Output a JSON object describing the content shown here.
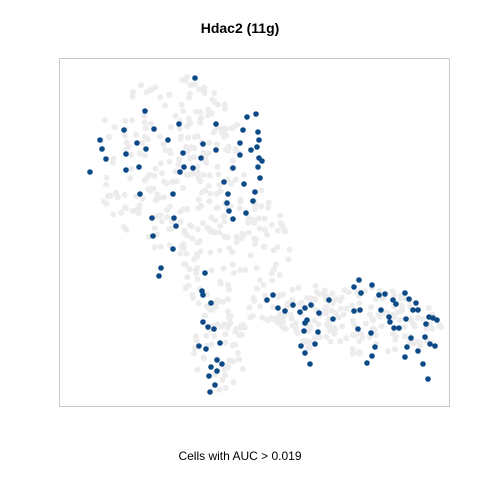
{
  "chart_data": {
    "type": "scatter",
    "title": "Hdac2 (11g)",
    "caption": "Cells with AUC > 0.019",
    "xlabel": "",
    "ylabel": "",
    "xlim": [
      0,
      390
    ],
    "ylim": [
      0,
      348
    ],
    "axes_visible": false,
    "grid": false,
    "colors": {
      "low": "#ececec",
      "high": "#0d4a86",
      "frame": "#c8c8c8"
    },
    "series": [
      {
        "points": [
          [
            135,
            328
          ],
          [
            42,
            257
          ],
          [
            40,
            266
          ],
          [
            46,
            247
          ],
          [
            30,
            234
          ],
          [
            77,
            263
          ],
          [
            94,
            277
          ],
          [
            85,
            295
          ],
          [
            119,
            282
          ],
          [
            123,
            253
          ],
          [
            120,
            234
          ],
          [
            113,
            212
          ],
          [
            114,
            188
          ],
          [
            116,
            180
          ],
          [
            93,
            170
          ],
          [
            113,
            157
          ],
          [
            101,
            138
          ],
          [
            99,
            130
          ],
          [
            124,
            239
          ],
          [
            108,
            266
          ],
          [
            133,
            238
          ],
          [
            141,
            248
          ],
          [
            143,
            262
          ],
          [
            156,
            282
          ],
          [
            156,
            256
          ],
          [
            164,
            224
          ],
          [
            168,
            212
          ],
          [
            167,
            203
          ],
          [
            169,
            195
          ],
          [
            173,
            187
          ],
          [
            180,
            263
          ],
          [
            187,
            289
          ],
          [
            196,
            292
          ],
          [
            198,
            274
          ],
          [
            199,
            266
          ],
          [
            199,
            248
          ],
          [
            202,
            245
          ],
          [
            191,
            256
          ],
          [
            197,
            259
          ],
          [
            198,
            239
          ],
          [
            200,
            228
          ],
          [
            195,
            214
          ],
          [
            193,
            205
          ],
          [
            186,
            193
          ],
          [
            184,
            222
          ],
          [
            180,
            251
          ],
          [
            173,
            238
          ],
          [
            183,
            276
          ],
          [
            64,
            276
          ],
          [
            66,
            252
          ],
          [
            66,
            236
          ],
          [
            79,
            239
          ],
          [
            86,
            257
          ],
          [
            80,
            212
          ],
          [
            92,
            188
          ],
          [
            145,
            133
          ],
          [
            143,
            111
          ],
          [
            142,
            115
          ],
          [
            139,
            60
          ],
          [
            146,
            57
          ],
          [
            143,
            84
          ],
          [
            151,
            103
          ],
          [
            157,
            46
          ],
          [
            157,
            35
          ],
          [
            162,
            42
          ],
          [
            160,
            63
          ],
          [
            154,
            77
          ],
          [
            148,
            79
          ],
          [
            151,
            39
          ],
          [
            149,
            30
          ],
          [
            155,
            21
          ],
          [
            150,
            14
          ],
          [
            207,
            106
          ],
          [
            213,
            111
          ],
          [
            218,
            98
          ],
          [
            225,
            95
          ],
          [
            240,
            94
          ],
          [
            245,
            83
          ],
          [
            245,
            98
          ],
          [
            251,
            101
          ],
          [
            259,
            93
          ],
          [
            269,
            106
          ],
          [
            273,
            87
          ],
          [
            255,
            62
          ],
          [
            247,
            86
          ],
          [
            258,
            74
          ],
          [
            245,
            53
          ],
          [
            241,
            60
          ],
          [
            250,
            42
          ],
          [
            244,
            75
          ],
          [
            233,
            101
          ],
          [
            301,
            113
          ],
          [
            294,
            119
          ],
          [
            299,
            126
          ],
          [
            312,
            121
          ],
          [
            325,
            112
          ],
          [
            319,
            111
          ],
          [
            333,
            106
          ],
          [
            336,
            102
          ],
          [
            345,
            113
          ],
          [
            349,
            107
          ],
          [
            346,
            87
          ],
          [
            353,
            96
          ],
          [
            356,
            103
          ],
          [
            358,
            96
          ],
          [
            369,
            89
          ],
          [
            351,
            68
          ],
          [
            358,
            55
          ],
          [
            370,
            62
          ],
          [
            373,
            88
          ],
          [
            377,
            86
          ],
          [
            321,
            96
          ],
          [
            329,
            89
          ],
          [
            339,
            78
          ],
          [
            307,
            43
          ],
          [
            312,
            50
          ],
          [
            311,
            73
          ],
          [
            347,
            59
          ],
          [
            345,
            49
          ],
          [
            363,
            42
          ],
          [
            365,
            69
          ],
          [
            366,
            82
          ],
          [
            368,
            27
          ],
          [
            334,
            78
          ],
          [
            375,
            60
          ],
          [
            330,
            84
          ],
          [
            294,
            95
          ],
          [
            298,
            77
          ],
          [
            315,
            59
          ],
          [
            300,
            96
          ]
        ]
      }
    ]
  }
}
